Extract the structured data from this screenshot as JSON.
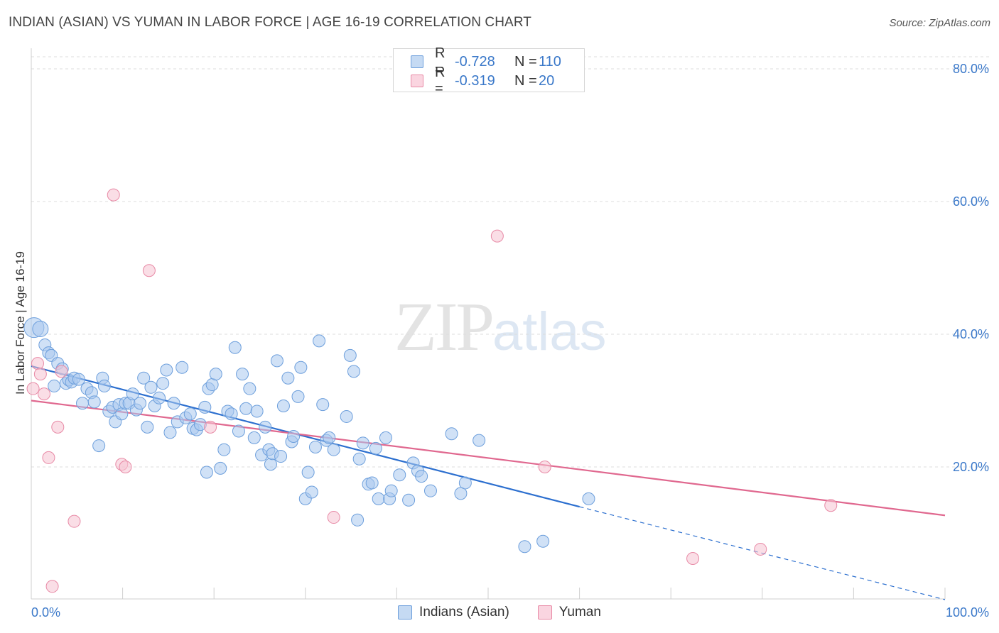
{
  "title": "INDIAN (ASIAN) VS YUMAN IN LABOR FORCE | AGE 16-19 CORRELATION CHART",
  "source": "Source: ZipAtlas.com",
  "watermark": {
    "zip": "ZIP",
    "atlas": "atlas"
  },
  "legend": {
    "rows": [
      {
        "r_label": "R =",
        "r_value": "-0.728",
        "n_label": "N =",
        "n_value": "110",
        "color": "#a9c8ee",
        "border": "#6d9fdc"
      },
      {
        "r_label": "R =",
        "r_value": "-0.319",
        "n_label": "N =",
        "n_value": "20",
        "color": "#f6c3d2",
        "border": "#e88aa6"
      }
    ]
  },
  "bottom_legend": [
    "Indians (Asian)",
    "Yuman"
  ],
  "chart_data": {
    "type": "scatter",
    "title": "INDIAN (ASIAN) VS YUMAN IN LABOR FORCE | AGE 16-19 CORRELATION CHART",
    "xlabel": "",
    "ylabel": "In Labor Force | Age 16-19",
    "xlim": [
      0,
      100
    ],
    "ylim": [
      0,
      80
    ],
    "x_tick_labels": [
      {
        "value": 0,
        "label": "0.0%"
      },
      {
        "value": 100,
        "label": "100.0%"
      }
    ],
    "y_tick_labels": [
      {
        "value": 20,
        "label": "20.0%"
      },
      {
        "value": 40,
        "label": "40.0%"
      },
      {
        "value": 60,
        "label": "60.0%"
      },
      {
        "value": 80,
        "label": "80.0%"
      }
    ],
    "grid": true,
    "series": [
      {
        "name": "Indians (Asian)",
        "color": "#6d9fdc",
        "fill": "#a9c8ee",
        "r": -0.728,
        "n": 110,
        "trend": {
          "x0": 0,
          "y0": 35.2,
          "x1": 60,
          "y1": 14.0,
          "dash_to_x": 100,
          "dash_to_y": 0
        },
        "points": [
          [
            0.3,
            41.0,
            3
          ],
          [
            1.0,
            40.8,
            2
          ],
          [
            1.5,
            38.4,
            1
          ],
          [
            1.9,
            37.2,
            1
          ],
          [
            2.2,
            36.8,
            1
          ],
          [
            2.5,
            32.2,
            1
          ],
          [
            2.9,
            35.6,
            1
          ],
          [
            3.4,
            34.8,
            1
          ],
          [
            3.8,
            32.6,
            1
          ],
          [
            4.1,
            33.1,
            1
          ],
          [
            4.4,
            32.8,
            1
          ],
          [
            4.7,
            33.4,
            1
          ],
          [
            5.2,
            33.2,
            1
          ],
          [
            5.6,
            29.6,
            1
          ],
          [
            6.1,
            31.8,
            1
          ],
          [
            6.6,
            31.2,
            1
          ],
          [
            6.9,
            29.8,
            1
          ],
          [
            7.4,
            23.2,
            1
          ],
          [
            7.8,
            33.4,
            1
          ],
          [
            8.0,
            32.2,
            1
          ],
          [
            8.5,
            28.4,
            1
          ],
          [
            8.9,
            29.0,
            1
          ],
          [
            9.2,
            26.8,
            1
          ],
          [
            9.6,
            29.4,
            1
          ],
          [
            9.9,
            28.0,
            1
          ],
          [
            10.3,
            29.6,
            1
          ],
          [
            10.7,
            29.6,
            1
          ],
          [
            11.1,
            31.0,
            1
          ],
          [
            11.5,
            28.6,
            1
          ],
          [
            11.9,
            29.6,
            1
          ],
          [
            12.3,
            33.4,
            1
          ],
          [
            12.7,
            26.0,
            1
          ],
          [
            13.1,
            32.0,
            1
          ],
          [
            13.5,
            29.2,
            1
          ],
          [
            14.0,
            30.4,
            1
          ],
          [
            14.4,
            32.6,
            1
          ],
          [
            14.8,
            34.6,
            1
          ],
          [
            15.2,
            25.2,
            1
          ],
          [
            15.6,
            29.6,
            1
          ],
          [
            16.0,
            26.8,
            1
          ],
          [
            16.5,
            35.0,
            1
          ],
          [
            16.9,
            27.4,
            1
          ],
          [
            17.4,
            28.0,
            1
          ],
          [
            17.7,
            25.8,
            1
          ],
          [
            18.1,
            25.6,
            1
          ],
          [
            18.5,
            26.4,
            1
          ],
          [
            19.0,
            29.0,
            1
          ],
          [
            19.4,
            31.8,
            1
          ],
          [
            19.2,
            19.2,
            1
          ],
          [
            19.8,
            32.4,
            1
          ],
          [
            20.2,
            34.0,
            1
          ],
          [
            20.7,
            19.8,
            1
          ],
          [
            21.1,
            22.6,
            1
          ],
          [
            21.5,
            28.4,
            1
          ],
          [
            21.9,
            28.0,
            1
          ],
          [
            22.3,
            38.0,
            1
          ],
          [
            22.7,
            25.4,
            1
          ],
          [
            23.1,
            34.0,
            1
          ],
          [
            23.5,
            28.8,
            1
          ],
          [
            23.9,
            31.8,
            1
          ],
          [
            24.4,
            24.4,
            1
          ],
          [
            24.7,
            28.4,
            1
          ],
          [
            25.2,
            21.8,
            1
          ],
          [
            25.6,
            26.0,
            1
          ],
          [
            26.0,
            22.6,
            1
          ],
          [
            26.2,
            20.4,
            1
          ],
          [
            26.4,
            22.0,
            1
          ],
          [
            26.9,
            36.0,
            1
          ],
          [
            27.3,
            21.6,
            1
          ],
          [
            27.6,
            29.2,
            1
          ],
          [
            28.1,
            33.4,
            1
          ],
          [
            28.5,
            23.8,
            1
          ],
          [
            28.7,
            24.6,
            1
          ],
          [
            29.2,
            30.6,
            1
          ],
          [
            29.5,
            35.0,
            1
          ],
          [
            30.0,
            15.2,
            1
          ],
          [
            30.3,
            19.2,
            1
          ],
          [
            30.7,
            16.2,
            1
          ],
          [
            31.1,
            23.0,
            1
          ],
          [
            31.5,
            39.0,
            1
          ],
          [
            31.9,
            29.4,
            1
          ],
          [
            32.3,
            24.0,
            1
          ],
          [
            32.6,
            24.4,
            1
          ],
          [
            33.1,
            22.6,
            1
          ],
          [
            34.5,
            27.6,
            1
          ],
          [
            34.9,
            36.8,
            1
          ],
          [
            35.3,
            34.4,
            1
          ],
          [
            35.7,
            12.0,
            1
          ],
          [
            35.9,
            21.2,
            1
          ],
          [
            36.3,
            23.6,
            1
          ],
          [
            36.9,
            17.4,
            1
          ],
          [
            37.3,
            17.6,
            1
          ],
          [
            37.7,
            22.8,
            1
          ],
          [
            38.0,
            15.2,
            1
          ],
          [
            38.8,
            24.4,
            1
          ],
          [
            39.2,
            15.2,
            1
          ],
          [
            39.4,
            16.4,
            1
          ],
          [
            40.3,
            18.8,
            1
          ],
          [
            41.3,
            15.0,
            1
          ],
          [
            41.8,
            20.6,
            1
          ],
          [
            42.3,
            19.4,
            1
          ],
          [
            42.7,
            18.6,
            1
          ],
          [
            43.7,
            16.4,
            1
          ],
          [
            46.0,
            25.0,
            1
          ],
          [
            47.0,
            16.0,
            1
          ],
          [
            47.5,
            17.6,
            1
          ],
          [
            49.0,
            24.0,
            1
          ],
          [
            54.0,
            8.0,
            1
          ],
          [
            56.0,
            8.8,
            1
          ],
          [
            61.0,
            15.2,
            1
          ]
        ]
      },
      {
        "name": "Yuman",
        "color": "#e88aa6",
        "fill": "#f6c3d2",
        "r": -0.319,
        "n": 20,
        "trend": {
          "x0": 0,
          "y0": 30.0,
          "x1": 100,
          "y1": 12.7
        },
        "points": [
          [
            0.2,
            31.8,
            1
          ],
          [
            0.7,
            35.6,
            1
          ],
          [
            1.0,
            34.0,
            1
          ],
          [
            1.4,
            31.0,
            1
          ],
          [
            1.9,
            21.4,
            1
          ],
          [
            2.3,
            2.0,
            1
          ],
          [
            2.9,
            26.0,
            1
          ],
          [
            3.3,
            34.4,
            1
          ],
          [
            4.7,
            11.8,
            1
          ],
          [
            9.0,
            61.0,
            1
          ],
          [
            9.9,
            20.4,
            1
          ],
          [
            10.3,
            20.0,
            1
          ],
          [
            12.9,
            49.6,
            1
          ],
          [
            19.6,
            26.0,
            1
          ],
          [
            33.1,
            12.4,
            1
          ],
          [
            51.0,
            54.8,
            1
          ],
          [
            56.2,
            20.0,
            1
          ],
          [
            72.4,
            6.2,
            1
          ],
          [
            79.8,
            7.6,
            1
          ],
          [
            87.5,
            14.2,
            1
          ]
        ]
      }
    ]
  }
}
